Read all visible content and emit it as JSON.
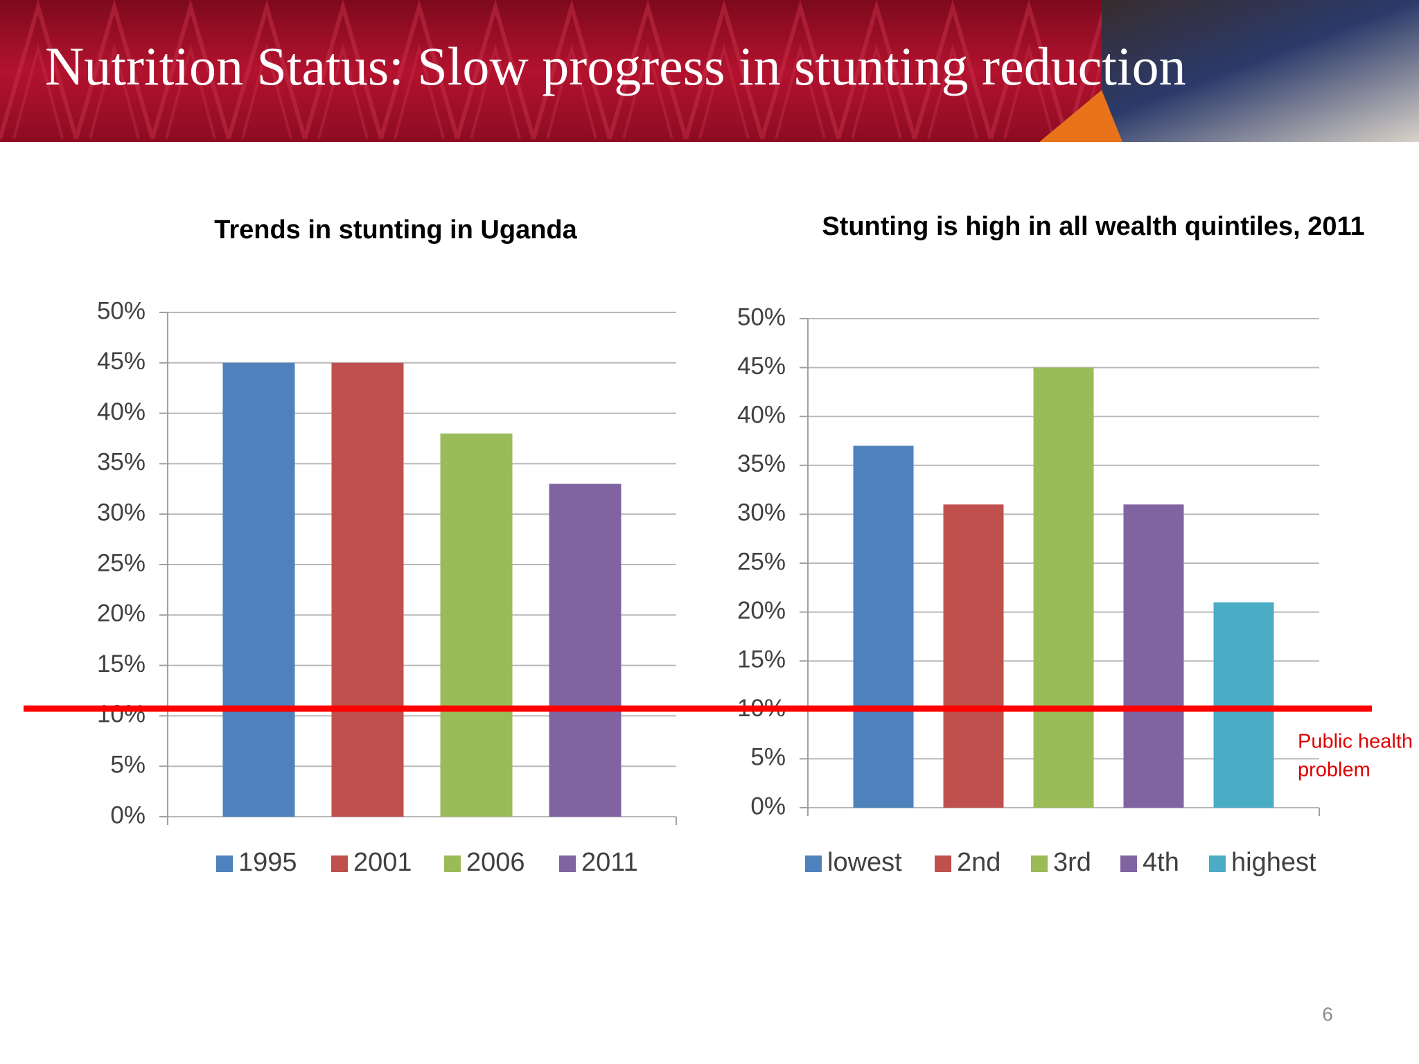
{
  "header": {
    "title": "Nutrition Status: Slow progress in stunting reduction"
  },
  "chart_data": [
    {
      "type": "bar",
      "title": "Trends in stunting in Uganda",
      "ylim": [
        0,
        50
      ],
      "yticks": [
        {
          "value": 0,
          "label": "0%"
        },
        {
          "value": 5,
          "label": "5%"
        },
        {
          "value": 10,
          "label": "10%"
        },
        {
          "value": 15,
          "label": "15%"
        },
        {
          "value": 20,
          "label": "20%"
        },
        {
          "value": 25,
          "label": "25%"
        },
        {
          "value": 30,
          "label": "30%"
        },
        {
          "value": 35,
          "label": "35%"
        },
        {
          "value": 40,
          "label": "40%"
        },
        {
          "value": 45,
          "label": "45%"
        },
        {
          "value": 50,
          "label": "50%"
        }
      ],
      "grid": true,
      "legend": "bottom",
      "series": [
        {
          "name": "1995",
          "color": "#4f81bd",
          "values": [
            45
          ]
        },
        {
          "name": "2001",
          "color": "#c0504d",
          "values": [
            45
          ]
        },
        {
          "name": "2006",
          "color": "#9bbb59",
          "values": [
            38
          ]
        },
        {
          "name": "2011",
          "color": "#8064a2",
          "values": [
            33
          ]
        }
      ]
    },
    {
      "type": "bar",
      "title": "Stunting is high in all wealth quintiles, 2011",
      "ylim": [
        0,
        50
      ],
      "yticks": [
        {
          "value": 0,
          "label": "0%"
        },
        {
          "value": 5,
          "label": "5%"
        },
        {
          "value": 10,
          "label": "10%"
        },
        {
          "value": 15,
          "label": "15%"
        },
        {
          "value": 20,
          "label": "20%"
        },
        {
          "value": 25,
          "label": "25%"
        },
        {
          "value": 30,
          "label": "30%"
        },
        {
          "value": 35,
          "label": "35%"
        },
        {
          "value": 40,
          "label": "40%"
        },
        {
          "value": 45,
          "label": "45%"
        },
        {
          "value": 50,
          "label": "50%"
        }
      ],
      "grid": true,
      "legend": "bottom",
      "series": [
        {
          "name": "lowest",
          "color": "#4f81bd",
          "values": [
            37
          ]
        },
        {
          "name": "2nd",
          "color": "#c0504d",
          "values": [
            31
          ]
        },
        {
          "name": "3rd",
          "color": "#9bbb59",
          "values": [
            45
          ]
        },
        {
          "name": "4th",
          "color": "#8064a2",
          "values": [
            31
          ]
        },
        {
          "name": "highest",
          "color": "#4bacc6",
          "values": [
            21
          ]
        }
      ]
    }
  ],
  "annotation": [
    "Public health",
    "problem"
  ],
  "slide_number": "6"
}
